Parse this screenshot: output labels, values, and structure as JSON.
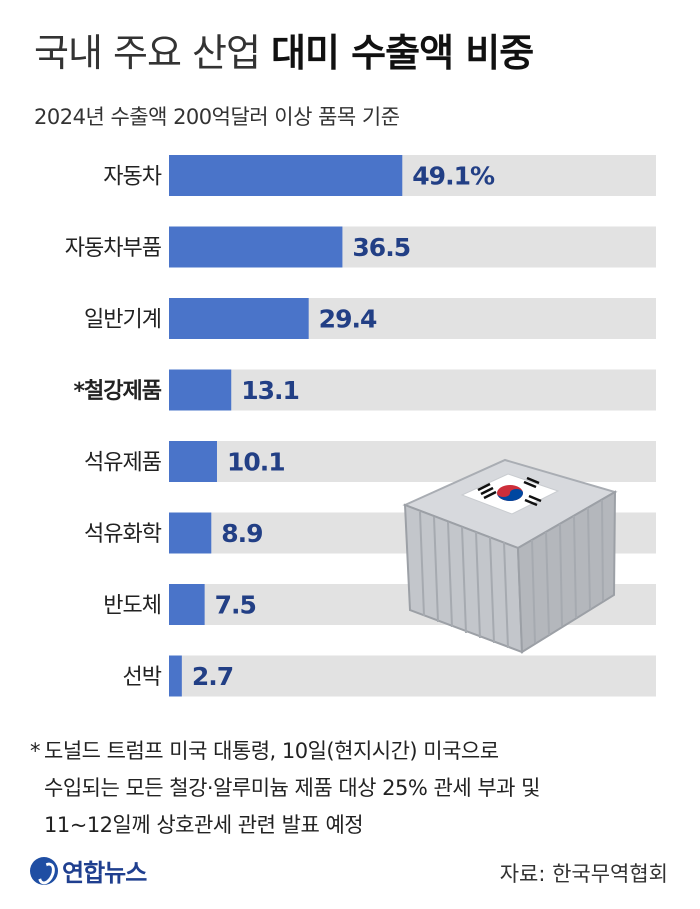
{
  "header": {
    "title_light": "국내 주요 산업",
    "title_bold": "대미 수출액 비중",
    "subtitle": "2024년 수출액 200억달러 이상 품목 기준"
  },
  "chart_data": {
    "type": "bar",
    "orientation": "horizontal",
    "title": "국내 주요 산업 대미 수출액 비중",
    "subtitle": "2024년 수출액 200억달러 이상 품목 기준",
    "categories": [
      "자동차",
      "자동차부품",
      "일반기계",
      "*철강제품",
      "석유제품",
      "석유화학",
      "반도체",
      "선박"
    ],
    "values": [
      49.1,
      36.5,
      29.4,
      13.1,
      10.1,
      8.9,
      7.5,
      2.7
    ],
    "value_labels": [
      "49.1%",
      "36.5",
      "29.4",
      "13.1",
      "10.1",
      "8.9",
      "7.5",
      "2.7"
    ],
    "highlighted_categories": [
      "*철강제품"
    ],
    "xlim": [
      0,
      100
    ],
    "grid": false,
    "legend": "none",
    "colors": {
      "bar": "#4a74c9",
      "track": "#e2e2e2",
      "label": "#223f85"
    }
  },
  "footnote": {
    "marker": "*",
    "lines": [
      "도널드 트럼프 미국 대통령, 10일(현지시간) 미국으로",
      "수입되는 모든 철강·알루미늄 제품 대상 25% 관세 부과 및",
      "11~12일께 상호관세 관련 발표 예정"
    ]
  },
  "branding": {
    "logo_text": "연합뉴스",
    "logo_icon": "yonhap-logo-icon"
  },
  "source": "자료: 한국무역협회"
}
